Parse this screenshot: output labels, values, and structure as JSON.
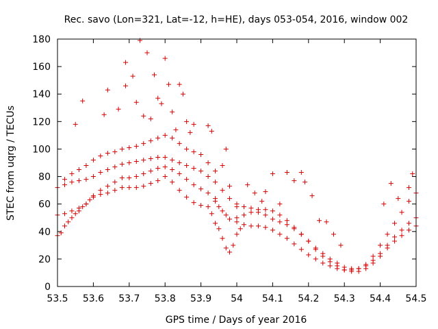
{
  "chart_data": {
    "type": "scatter",
    "title": "Rec. savo (Lon=321, Lat=-12, h=HE), days 053-054, 2016, window 002",
    "xlabel": "GPS time / Days of year 2016",
    "ylabel": "STEC from uqrg / TECUs",
    "xlim": [
      53.5,
      54.5
    ],
    "ylim": [
      0,
      180
    ],
    "xticks": [
      53.5,
      53.6,
      53.7,
      53.8,
      53.9,
      54,
      54.1,
      54.2,
      54.3,
      54.4,
      54.5
    ],
    "xtick_labels": [
      "53.5",
      "53.6",
      "53.7",
      "53.8",
      "53.9",
      "54",
      "54.1",
      "54.2",
      "54.3",
      "54.4",
      "54.5"
    ],
    "yticks": [
      0,
      20,
      40,
      60,
      80,
      100,
      120,
      140,
      160,
      180
    ],
    "ytick_labels": [
      "0",
      "20",
      "40",
      "60",
      "80",
      "100",
      "120",
      "140",
      "160",
      "180"
    ],
    "grid": false,
    "marker": "+",
    "color": "#d40000",
    "series": [
      {
        "name": "STEC",
        "points": [
          [
            53.5,
            37
          ],
          [
            53.51,
            39
          ],
          [
            53.52,
            44
          ],
          [
            53.53,
            47
          ],
          [
            53.54,
            50
          ],
          [
            53.55,
            53
          ],
          [
            53.56,
            55
          ],
          [
            53.57,
            58
          ],
          [
            53.58,
            60
          ],
          [
            53.59,
            63
          ],
          [
            53.6,
            66
          ],
          [
            53.62,
            67
          ],
          [
            53.64,
            68
          ],
          [
            53.66,
            70
          ],
          [
            53.68,
            72
          ],
          [
            53.7,
            72
          ],
          [
            53.72,
            72
          ],
          [
            53.74,
            73
          ],
          [
            53.76,
            75
          ],
          [
            53.78,
            77
          ],
          [
            53.8,
            80
          ],
          [
            53.82,
            76
          ],
          [
            53.84,
            70
          ],
          [
            53.86,
            65
          ],
          [
            53.88,
            61
          ],
          [
            53.9,
            59
          ],
          [
            53.5,
            52
          ],
          [
            53.52,
            53
          ],
          [
            53.54,
            55
          ],
          [
            53.56,
            57
          ],
          [
            53.58,
            60
          ],
          [
            53.6,
            65
          ],
          [
            53.62,
            70
          ],
          [
            53.64,
            73
          ],
          [
            53.66,
            76
          ],
          [
            53.68,
            79
          ],
          [
            53.7,
            79
          ],
          [
            53.72,
            80
          ],
          [
            53.74,
            82
          ],
          [
            53.76,
            84
          ],
          [
            53.78,
            86
          ],
          [
            53.8,
            87
          ],
          [
            53.82,
            85
          ],
          [
            53.84,
            82
          ],
          [
            53.86,
            78
          ],
          [
            53.88,
            74
          ],
          [
            53.9,
            71
          ],
          [
            53.92,
            68
          ],
          [
            53.94,
            64
          ],
          [
            53.5,
            72
          ],
          [
            53.52,
            74
          ],
          [
            53.54,
            76
          ],
          [
            53.56,
            77
          ],
          [
            53.58,
            78
          ],
          [
            53.6,
            80
          ],
          [
            53.62,
            83
          ],
          [
            53.64,
            85
          ],
          [
            53.66,
            87
          ],
          [
            53.68,
            89
          ],
          [
            53.7,
            90
          ],
          [
            53.72,
            91
          ],
          [
            53.74,
            92
          ],
          [
            53.76,
            93
          ],
          [
            53.78,
            94
          ],
          [
            53.8,
            94
          ],
          [
            53.82,
            92
          ],
          [
            53.84,
            90
          ],
          [
            53.86,
            88
          ],
          [
            53.88,
            86
          ],
          [
            53.9,
            84
          ],
          [
            53.92,
            80
          ],
          [
            53.94,
            76
          ],
          [
            53.96,
            70
          ],
          [
            53.98,
            64
          ],
          [
            54.0,
            58
          ],
          [
            53.52,
            78
          ],
          [
            53.54,
            82
          ],
          [
            53.56,
            85
          ],
          [
            53.58,
            88
          ],
          [
            53.6,
            92
          ],
          [
            53.62,
            95
          ],
          [
            53.64,
            97
          ],
          [
            53.66,
            98
          ],
          [
            53.68,
            100
          ],
          [
            53.7,
            101
          ],
          [
            53.72,
            102
          ],
          [
            53.74,
            104
          ],
          [
            53.76,
            106
          ],
          [
            53.78,
            108
          ],
          [
            53.8,
            110
          ],
          [
            53.82,
            108
          ],
          [
            53.84,
            104
          ],
          [
            53.86,
            100
          ],
          [
            53.88,
            98
          ],
          [
            53.9,
            96
          ],
          [
            53.92,
            90
          ],
          [
            53.94,
            84
          ],
          [
            53.55,
            118
          ],
          [
            53.57,
            135
          ],
          [
            53.63,
            125
          ],
          [
            53.64,
            143
          ],
          [
            53.67,
            129
          ],
          [
            53.69,
            146
          ],
          [
            53.69,
            163
          ],
          [
            53.71,
            153
          ],
          [
            53.72,
            134
          ],
          [
            53.73,
            179
          ],
          [
            53.75,
            170
          ],
          [
            53.77,
            154
          ],
          [
            53.78,
            137
          ],
          [
            53.79,
            133
          ],
          [
            53.8,
            166
          ],
          [
            53.81,
            147
          ],
          [
            53.82,
            127
          ],
          [
            53.84,
            147
          ],
          [
            53.85,
            140
          ],
          [
            53.86,
            120
          ],
          [
            53.87,
            112
          ],
          [
            53.92,
            117
          ],
          [
            53.93,
            113
          ],
          [
            53.96,
            88
          ],
          [
            53.97,
            100
          ],
          [
            53.98,
            73
          ],
          [
            53.88,
            118
          ],
          [
            53.76,
            122
          ],
          [
            53.83,
            114
          ],
          [
            53.74,
            124
          ],
          [
            53.92,
            58
          ],
          [
            53.93,
            53
          ],
          [
            53.94,
            46
          ],
          [
            53.95,
            42
          ],
          [
            53.96,
            35
          ],
          [
            53.97,
            28
          ],
          [
            53.98,
            25
          ],
          [
            53.99,
            30
          ],
          [
            54.0,
            38
          ],
          [
            54.01,
            42
          ],
          [
            53.94,
            62
          ],
          [
            53.95,
            58
          ],
          [
            53.96,
            55
          ],
          [
            53.97,
            52
          ],
          [
            53.98,
            49
          ],
          [
            54.0,
            50
          ],
          [
            54.02,
            52
          ],
          [
            54.04,
            54
          ],
          [
            54.06,
            54
          ],
          [
            54.08,
            52
          ],
          [
            54.1,
            49
          ],
          [
            54.12,
            47
          ],
          [
            54.14,
            45
          ],
          [
            54.16,
            42
          ],
          [
            54.18,
            38
          ],
          [
            54.2,
            33
          ],
          [
            54.22,
            27
          ],
          [
            54.24,
            22
          ],
          [
            54.26,
            18
          ],
          [
            54.28,
            15
          ],
          [
            54.3,
            12
          ],
          [
            54.32,
            11
          ],
          [
            54.34,
            11
          ],
          [
            54.36,
            13
          ],
          [
            54.38,
            17
          ],
          [
            54.4,
            22
          ],
          [
            54.42,
            28
          ],
          [
            54.44,
            33
          ],
          [
            54.46,
            37
          ],
          [
            54.48,
            41
          ],
          [
            54.5,
            44
          ],
          [
            54.0,
            60
          ],
          [
            54.02,
            58
          ],
          [
            54.04,
            57
          ],
          [
            54.06,
            56
          ],
          [
            54.08,
            56
          ],
          [
            54.1,
            55
          ],
          [
            54.12,
            52
          ],
          [
            54.14,
            48
          ],
          [
            54.16,
            43
          ],
          [
            54.18,
            38
          ],
          [
            54.2,
            33
          ],
          [
            54.22,
            28
          ],
          [
            54.24,
            24
          ],
          [
            54.26,
            20
          ],
          [
            54.28,
            17
          ],
          [
            54.3,
            14
          ],
          [
            54.32,
            13
          ],
          [
            54.34,
            13
          ],
          [
            54.36,
            15
          ],
          [
            54.38,
            19
          ],
          [
            54.4,
            24
          ],
          [
            54.42,
            30
          ],
          [
            54.44,
            36
          ],
          [
            54.46,
            41
          ],
          [
            54.48,
            46
          ],
          [
            54.5,
            50
          ],
          [
            54.0,
            47
          ],
          [
            54.02,
            45
          ],
          [
            54.04,
            44
          ],
          [
            54.06,
            44
          ],
          [
            54.08,
            43
          ],
          [
            54.1,
            41
          ],
          [
            54.12,
            38
          ],
          [
            54.14,
            35
          ],
          [
            54.16,
            31
          ],
          [
            54.18,
            27
          ],
          [
            54.2,
            23
          ],
          [
            54.22,
            20
          ],
          [
            54.24,
            17
          ],
          [
            54.26,
            15
          ],
          [
            54.28,
            13
          ],
          [
            54.3,
            12
          ],
          [
            54.32,
            12
          ],
          [
            54.34,
            13
          ],
          [
            54.36,
            16
          ],
          [
            54.38,
            22
          ],
          [
            54.4,
            30
          ],
          [
            54.42,
            38
          ],
          [
            54.44,
            46
          ],
          [
            54.46,
            54
          ],
          [
            54.48,
            62
          ],
          [
            54.5,
            68
          ],
          [
            54.03,
            74
          ],
          [
            54.05,
            68
          ],
          [
            54.07,
            62
          ],
          [
            54.1,
            82
          ],
          [
            54.12,
            60
          ],
          [
            54.14,
            83
          ],
          [
            54.16,
            77
          ],
          [
            54.18,
            83
          ],
          [
            54.19,
            76
          ],
          [
            54.21,
            66
          ],
          [
            54.23,
            48
          ],
          [
            54.25,
            47
          ],
          [
            54.27,
            38
          ],
          [
            54.29,
            30
          ],
          [
            54.43,
            75
          ],
          [
            54.48,
            72
          ],
          [
            54.49,
            82
          ],
          [
            54.45,
            64
          ],
          [
            54.41,
            60
          ],
          [
            54.08,
            69
          ]
        ]
      }
    ]
  }
}
